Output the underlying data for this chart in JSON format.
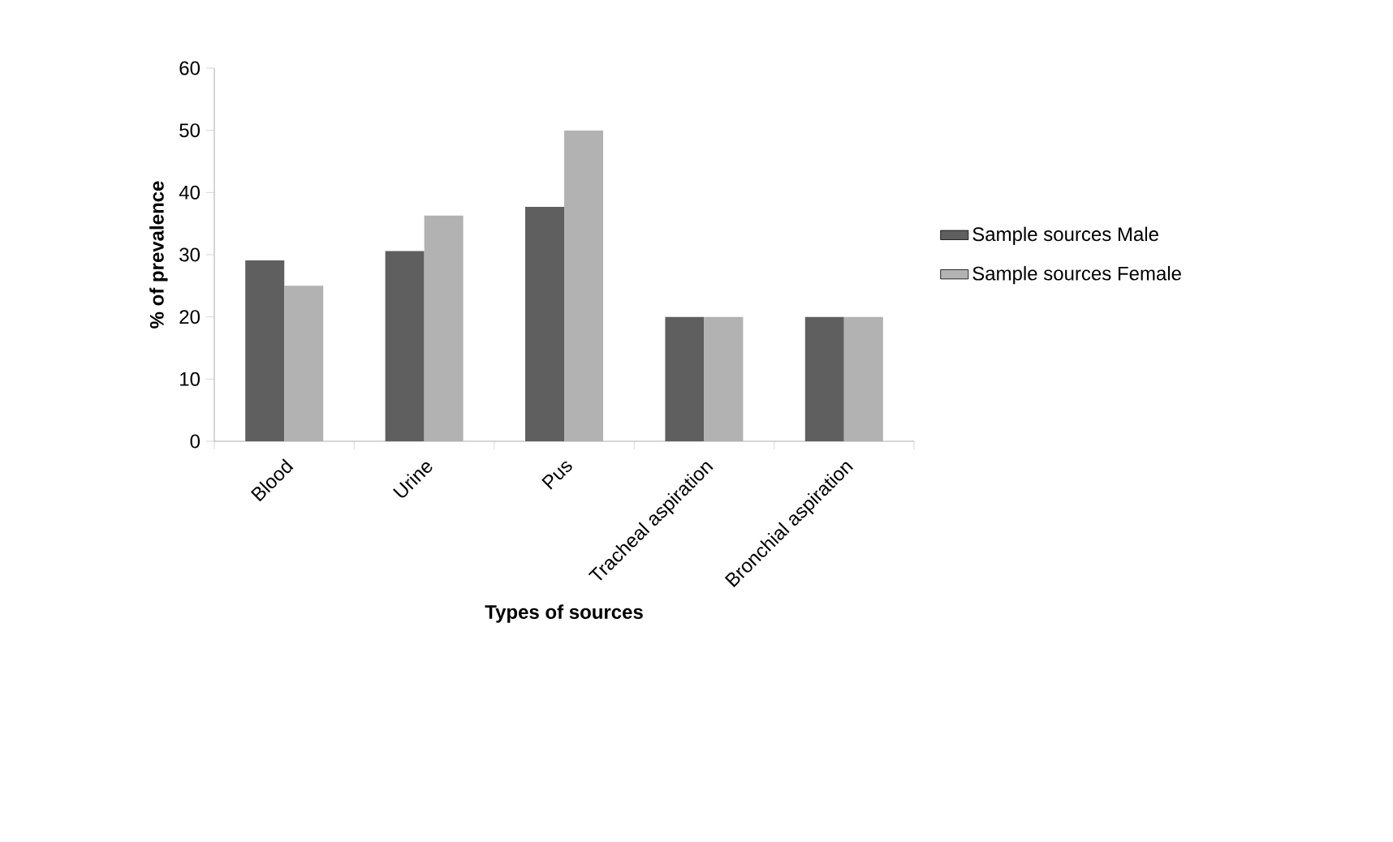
{
  "chart_data": {
    "type": "bar",
    "xlabel": "Types of sources",
    "ylabel": "% of prevalence",
    "categories": [
      "Blood",
      "Urine",
      "Pus",
      "Tracheal aspiration",
      "Bronchial aspiration"
    ],
    "series": [
      {
        "name": "Sample sources Male",
        "color": "#5f5f5f",
        "values": [
          29.1,
          30.6,
          37.7,
          20,
          20
        ]
      },
      {
        "name": "Sample sources Female",
        "color": "#b2b2b2",
        "values": [
          25,
          36.3,
          50,
          20,
          20
        ]
      }
    ],
    "ylim": [
      0,
      60
    ],
    "yticks": [
      0,
      10,
      20,
      30,
      40,
      50,
      60
    ],
    "grid": false,
    "legend": "right"
  }
}
